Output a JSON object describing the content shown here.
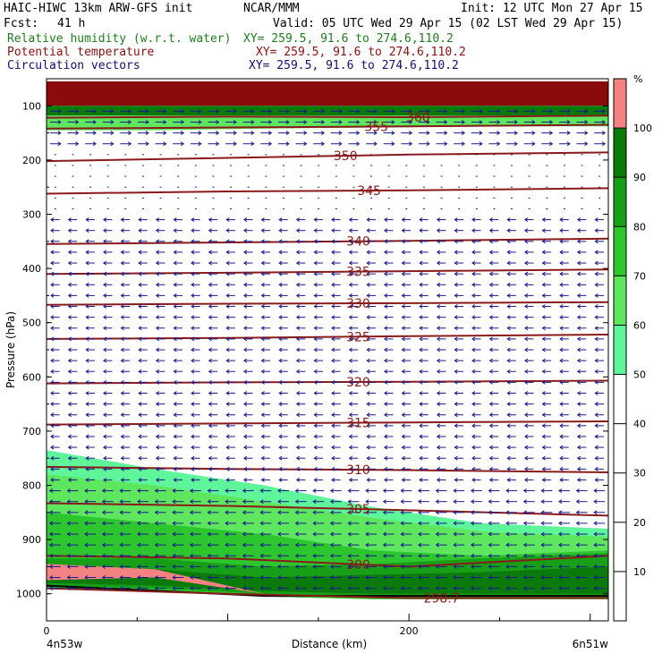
{
  "header": {
    "model": "HAIC-HIWC 13km ARW-GFS init",
    "org": "NCAR/MMM",
    "init": "Init: 12 UTC Mon 27 Apr 15",
    "fcst_label": "Fcst:",
    "fcst_value": "41 h",
    "valid": "Valid: 05 UTC Wed 29 Apr 15 (02 LST Wed 29 Apr 15)",
    "fields": [
      {
        "name": "Relative humidity (w.r.t. water)",
        "xy": "XY= 259.5, 91.6 to 274.6,110.2"
      },
      {
        "name": "Potential temperature",
        "xy": "XY= 259.5, 91.6 to 274.6,110.2"
      },
      {
        "name": "Circulation vectors",
        "xy": "XY= 259.5, 91.6 to 274.6,110.2"
      }
    ]
  },
  "colors": {
    "rh_levels": [
      "#5ef59b",
      "#5ee65e",
      "#2ec62e",
      "#179f17",
      "#0a7a0a",
      "#f58282",
      "#8b0a0a"
    ],
    "theta": "#8b1a1a",
    "vectors": "#1a1a8c"
  },
  "chart_data": {
    "type": "cross-section",
    "xlabel": "Distance (km)",
    "ylabel": "Pressure (hPa)",
    "x_ticks": [
      "0",
      "200"
    ],
    "x_endpoints": [
      "4n53w",
      "6n51w"
    ],
    "x_range_km": [
      0,
      310
    ],
    "y_ticks": [
      "100",
      "200",
      "300",
      "400",
      "500",
      "600",
      "700",
      "800",
      "900",
      "1000"
    ],
    "y_range_hpa": [
      1050,
      50
    ],
    "colorbar": {
      "unit": "%",
      "labels": [
        "100",
        "90",
        "80",
        "70",
        "60",
        "50",
        "40",
        "30",
        "20",
        "10"
      ],
      "bins": [
        {
          "range": [
            100,
            110
          ],
          "color": "#f58282"
        },
        {
          "range": [
            90,
            100
          ],
          "color": "#0a7a0a"
        },
        {
          "range": [
            80,
            90
          ],
          "color": "#179f17"
        },
        {
          "range": [
            70,
            80
          ],
          "color": "#2ec62e"
        },
        {
          "range": [
            60,
            70
          ],
          "color": "#5ee65e"
        },
        {
          "range": [
            50,
            60
          ],
          "color": "#5ef59b"
        },
        {
          "range": [
            0,
            50
          ],
          "color": "#ffffff"
        }
      ]
    },
    "theta_contours": [
      {
        "label": "360",
        "label_km": 205,
        "p": [
          122,
          120,
          121,
          118
        ]
      },
      {
        "label": "355",
        "label_km": 182,
        "p": [
          142,
          140,
          138,
          135
        ]
      },
      {
        "label": "350",
        "label_km": 165,
        "p": [
          202,
          196,
          190,
          186
        ]
      },
      {
        "label": "345",
        "label_km": 178,
        "p": [
          262,
          258,
          256,
          252
        ]
      },
      {
        "label": "340",
        "label_km": 172,
        "p": [
          355,
          352,
          349,
          345
        ]
      },
      {
        "label": "335",
        "label_km": 172,
        "p": [
          410,
          408,
          405,
          402
        ]
      },
      {
        "label": "330",
        "label_km": 172,
        "p": [
          467,
          465,
          464,
          462
        ]
      },
      {
        "label": "325",
        "label_km": 172,
        "p": [
          530,
          528,
          525,
          522
        ]
      },
      {
        "label": "320",
        "label_km": 172,
        "p": [
          612,
          610,
          609,
          607
        ]
      },
      {
        "label": "315",
        "label_km": 172,
        "p": [
          688,
          686,
          684,
          682
        ]
      },
      {
        "label": "310",
        "label_km": 172,
        "p": [
          766,
          770,
          772,
          776
        ]
      },
      {
        "label": "305",
        "label_km": 172,
        "p": [
          833,
          838,
          846,
          856
        ]
      },
      {
        "label": "300",
        "label_km": 172,
        "p": [
          930,
          935,
          950,
          930
        ]
      },
      {
        "label": "298.7",
        "label_km": 218,
        "p": [
          990,
          1000,
          1008,
          1008
        ]
      }
    ],
    "rh_regions": [
      {
        "rh": 50,
        "top": [
          735,
          770,
          800,
          840,
          870,
          880
        ],
        "bottom": [
          990,
          995,
          1005,
          1010,
          1010,
          1010
        ]
      },
      {
        "rh": 60,
        "top": [
          780,
          800,
          830,
          860,
          885,
          895
        ],
        "bottom": [
          990,
          995,
          1005,
          1010,
          1010,
          1010
        ]
      },
      {
        "rh": 70,
        "top": [
          850,
          870,
          890,
          920,
          930,
          920
        ],
        "bottom": [
          990,
          995,
          1005,
          1010,
          1010,
          1010
        ]
      },
      {
        "rh": 80,
        "top": [
          935,
          935,
          950,
          945,
          935,
          925
        ],
        "bottom": [
          985,
          990,
          1000,
          1005,
          1005,
          1005
        ]
      },
      {
        "rh": 90,
        "top": [
          950,
          955,
          970,
          965,
          960,
          950
        ],
        "bottom": [
          980,
          985,
          995,
          1000,
          1000,
          1000
        ]
      },
      {
        "rh": 100,
        "top": [
          945,
          955,
          1000,
          1000,
          1000,
          1000
        ],
        "bottom": [
          975,
          970,
          1000,
          1000,
          1000,
          1000
        ]
      },
      {
        "rh": 105,
        "top": [
          55,
          55,
          55,
          55,
          55,
          55
        ],
        "bottom": [
          100,
          100,
          100,
          100,
          100,
          100
        ]
      },
      {
        "rh": 90,
        "top": [
          100,
          100,
          100,
          100,
          100,
          100
        ],
        "bottom": [
          118,
          118,
          118,
          118,
          118,
          118
        ]
      },
      {
        "rh": 60,
        "top": [
          118,
          118,
          118,
          118,
          118,
          118
        ],
        "bottom": [
          145,
          145,
          142,
          140,
          138,
          138
        ]
      }
    ],
    "rh_region_x_km": [
      0,
      60,
      120,
      180,
      240,
      310
    ],
    "vector_field": {
      "columns": 32,
      "upper_u": 1.0,
      "mid_u": -0.8,
      "lower_u": -1.0,
      "upper_to_hpa": 180,
      "mid_from_hpa": 300
    }
  }
}
